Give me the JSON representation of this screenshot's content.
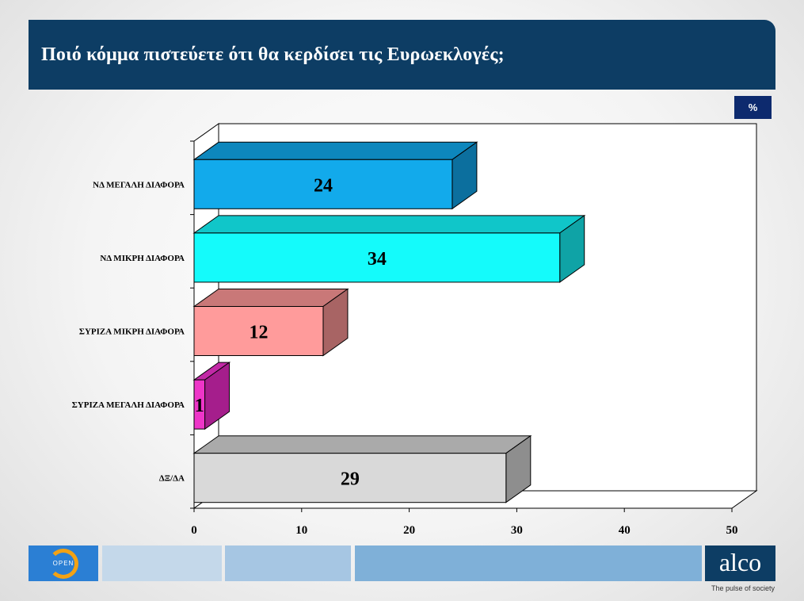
{
  "title": "Ποιό κόμμα πιστεύετε ότι θα κερδίσει τις Ευρωεκλογές;",
  "unit_badge": "%",
  "footer": {
    "left_logo_text": "OPEN",
    "right_logo_text": "alco",
    "tagline": "The pulse of society"
  },
  "chart_data": {
    "type": "bar",
    "orientation": "horizontal",
    "style": "3d",
    "categories": [
      "ΝΔ ΜΕΓΑΛΗ ΔΙΑΦΟΡΑ",
      "ΝΔ ΜΙΚΡΗ ΔΙΑΦΟΡΑ",
      "ΣΥΡΙΖΑ ΜΙΚΡΗ ΔΙΑΦΟΡΑ",
      "ΣΥΡΙΖΑ ΜΕΓΑΛΗ ΔΙΑΦΟΡΑ",
      "ΔΞ/ΔΑ"
    ],
    "values": [
      24,
      34,
      12,
      1,
      29
    ],
    "data_labels": [
      "24",
      "34",
      "12",
      "1",
      "29"
    ],
    "colors": [
      "#12aaeb",
      "#14fbfb",
      "#ff9b9b",
      "#ee35c8",
      "#d9d9d9"
    ],
    "side_colors": [
      "#0c6f9e",
      "#0fa3a6",
      "#a86464",
      "#a51e8c",
      "#8e8e8e"
    ],
    "top_colors": [
      "#0d87bd",
      "#10c6c9",
      "#c97878",
      "#c229a6",
      "#aaaaaa"
    ],
    "xlim": [
      0,
      50
    ],
    "xticks": [
      0,
      10,
      20,
      30,
      40,
      50
    ],
    "xlabel": "",
    "ylabel": "",
    "grid": false,
    "legend": "none"
  }
}
